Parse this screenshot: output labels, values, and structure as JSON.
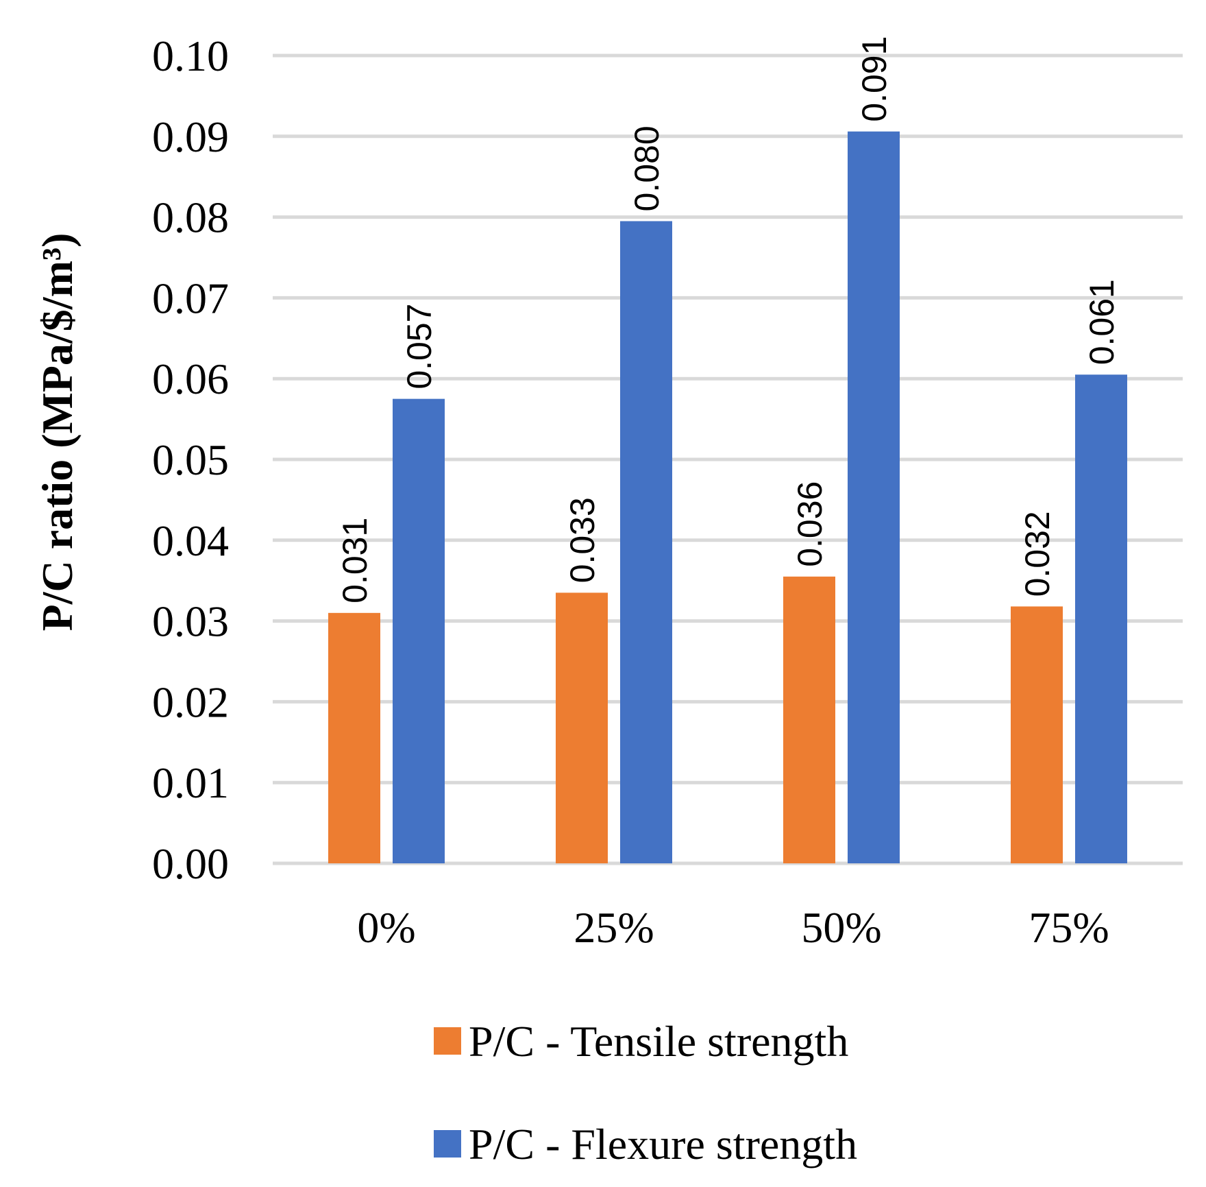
{
  "chart_data": {
    "type": "bar",
    "title": "",
    "xlabel": "",
    "ylabel": "P/C ratio (MPa/$/m³)",
    "ylim": [
      0,
      0.1
    ],
    "ytick_step": 0.01,
    "ytick_labels": [
      "0.00",
      "0.01",
      "0.02",
      "0.03",
      "0.04",
      "0.05",
      "0.06",
      "0.07",
      "0.08",
      "0.09",
      "0.10"
    ],
    "grid": true,
    "legend_position": "bottom",
    "categories": [
      "0%",
      "25%",
      "50%",
      "75%"
    ],
    "series": [
      {
        "name": "P/C - Tensile strength",
        "color": "#ED7D31",
        "values": [
          0.031,
          0.0335,
          0.0355,
          0.0318
        ],
        "labels": [
          "0.031",
          "0.033",
          "0.036",
          "0.032"
        ]
      },
      {
        "name": "P/C - Flexure strength",
        "color": "#4472C4",
        "values": [
          0.0575,
          0.0795,
          0.0906,
          0.0605
        ],
        "labels": [
          "0.057",
          "0.080",
          "0.091",
          "0.061"
        ]
      }
    ],
    "gridline_color": "#D9D9D9"
  }
}
